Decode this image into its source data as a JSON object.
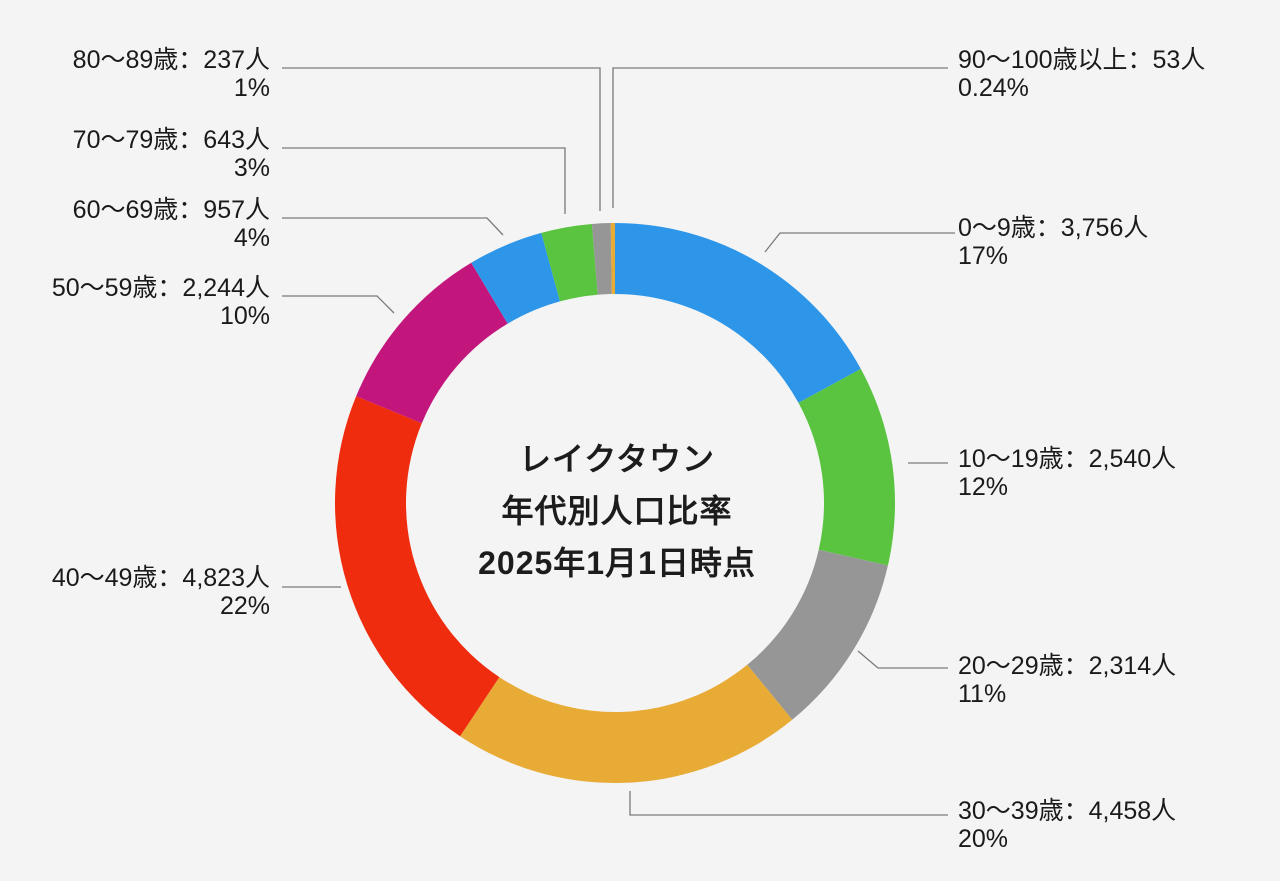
{
  "background": "#f4f4f5",
  "center_title": {
    "line1": "レイクタウン",
    "line2": "年代別人口比率",
    "line3": "2025年1月1日時点"
  },
  "chart_data": {
    "type": "pie",
    "subtype": "donut",
    "title": "レイクタウン 年代別人口比率 2025年1月1日時点",
    "total": 22025,
    "unit": "人",
    "start_angle_deg": -90,
    "direction": "clockwise",
    "legend_position": "callout-labels",
    "segments": [
      {
        "category": "0〜9歳",
        "value": 3756,
        "count_label": "3,756",
        "label": "0〜9歳：3,756人",
        "percent_label": "17%",
        "color": "#2d96e9"
      },
      {
        "category": "10〜19歳",
        "value": 2540,
        "count_label": "2,540",
        "label": "10〜19歳：2,540人",
        "percent_label": "12%",
        "color": "#5ac440"
      },
      {
        "category": "20〜29歳",
        "value": 2314,
        "count_label": "2,314",
        "label": "20〜29歳：2,314人",
        "percent_label": "11%",
        "color": "#969696"
      },
      {
        "category": "30〜39歳",
        "value": 4458,
        "count_label": "4,458",
        "label": "30〜39歳：4,458人",
        "percent_label": "20%",
        "color": "#e8ab35"
      },
      {
        "category": "40〜49歳",
        "value": 4823,
        "count_label": "4,823",
        "label": "40〜49歳：4,823人",
        "percent_label": "22%",
        "color": "#ef2c0e"
      },
      {
        "category": "50〜59歳",
        "value": 2244,
        "count_label": "2,244",
        "label": "50〜59歳：2,244人",
        "percent_label": "10%",
        "color": "#c2167d"
      },
      {
        "category": "60〜69歳",
        "value": 957,
        "count_label": "957",
        "label": "60〜69歳：957人",
        "percent_label": "4%",
        "color": "#2d96e9"
      },
      {
        "category": "70〜79歳",
        "value": 643,
        "count_label": "643",
        "label": "70〜79歳：643人",
        "percent_label": "3%",
        "color": "#5ac440"
      },
      {
        "category": "80〜89歳",
        "value": 237,
        "count_label": "237",
        "label": "80〜89歳：237人",
        "percent_label": "1%",
        "color": "#969696"
      },
      {
        "category": "90〜100歳以上",
        "value": 53,
        "count_label": "53",
        "label": "90〜100歳以上：53人",
        "percent_label": "0.24%",
        "color": "#e8ab35"
      }
    ]
  },
  "leader_line_color": "#7a7a7a"
}
